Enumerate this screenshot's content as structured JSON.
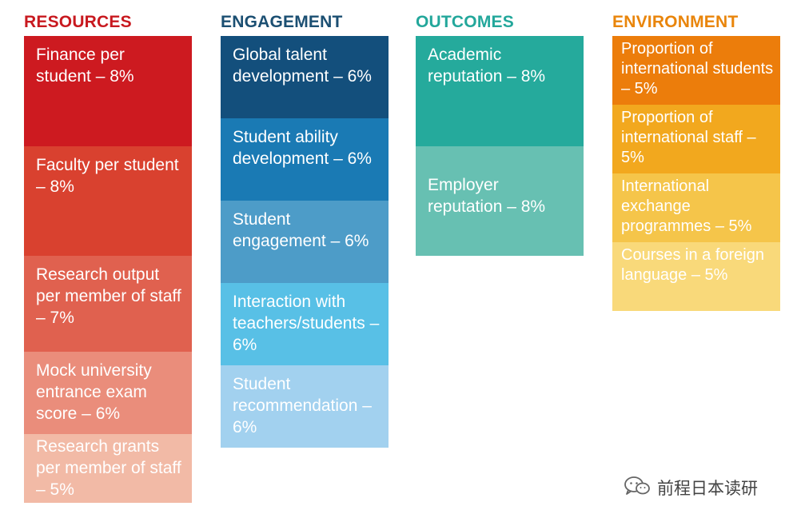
{
  "columns": [
    {
      "title": "RESOURCES",
      "title_color": "#c8191f",
      "items": [
        {
          "text": "Finance per student – 8%",
          "color": "#cd1a20"
        },
        {
          "text": "Faculty per student – 8%",
          "color": "#d9412f"
        },
        {
          "text": "Research output per member of staff – 7%",
          "color": "#e0614f"
        },
        {
          "text": "Mock university entrance exam score – 6%",
          "color": "#ea8d7b"
        },
        {
          "text": "Research grants per member of staff – 5%",
          "color": "#f2baa6"
        }
      ]
    },
    {
      "title": "ENGAGEMENT",
      "title_color": "#1b4f72",
      "items": [
        {
          "text": "Global talent development – 6%",
          "color": "#134f7c"
        },
        {
          "text": "Student ability development – 6%",
          "color": "#1a7ab4"
        },
        {
          "text": "Student engagement – 6%",
          "color": "#4d9cc8"
        },
        {
          "text": "Interaction with teachers/students – 6%",
          "color": "#58c0e6"
        },
        {
          "text": "Student recommendation – 6%",
          "color": "#a2d1ef"
        }
      ]
    },
    {
      "title": "OUTCOMES",
      "title_color": "#23a79b",
      "items": [
        {
          "text": "Academic reputation – 8%",
          "color": "#25aa9c"
        },
        {
          "text": "Employer reputation – 8%",
          "color": "#67c0b2"
        }
      ]
    },
    {
      "title": "ENVIRONMENT",
      "title_color": "#e9850b",
      "items": [
        {
          "text": "Proportion of international students – 5%",
          "color": "#ec7d0b"
        },
        {
          "text": "Proportion of international staff – 5%",
          "color": "#f2a81e"
        },
        {
          "text": "International exchange programmes – 5%",
          "color": "#f5c54a"
        },
        {
          "text": "Courses in a foreign language – 5%",
          "color": "#f9d97a"
        }
      ]
    }
  ],
  "watermark": {
    "icon": "wechat-icon",
    "text": "前程日本读研"
  }
}
